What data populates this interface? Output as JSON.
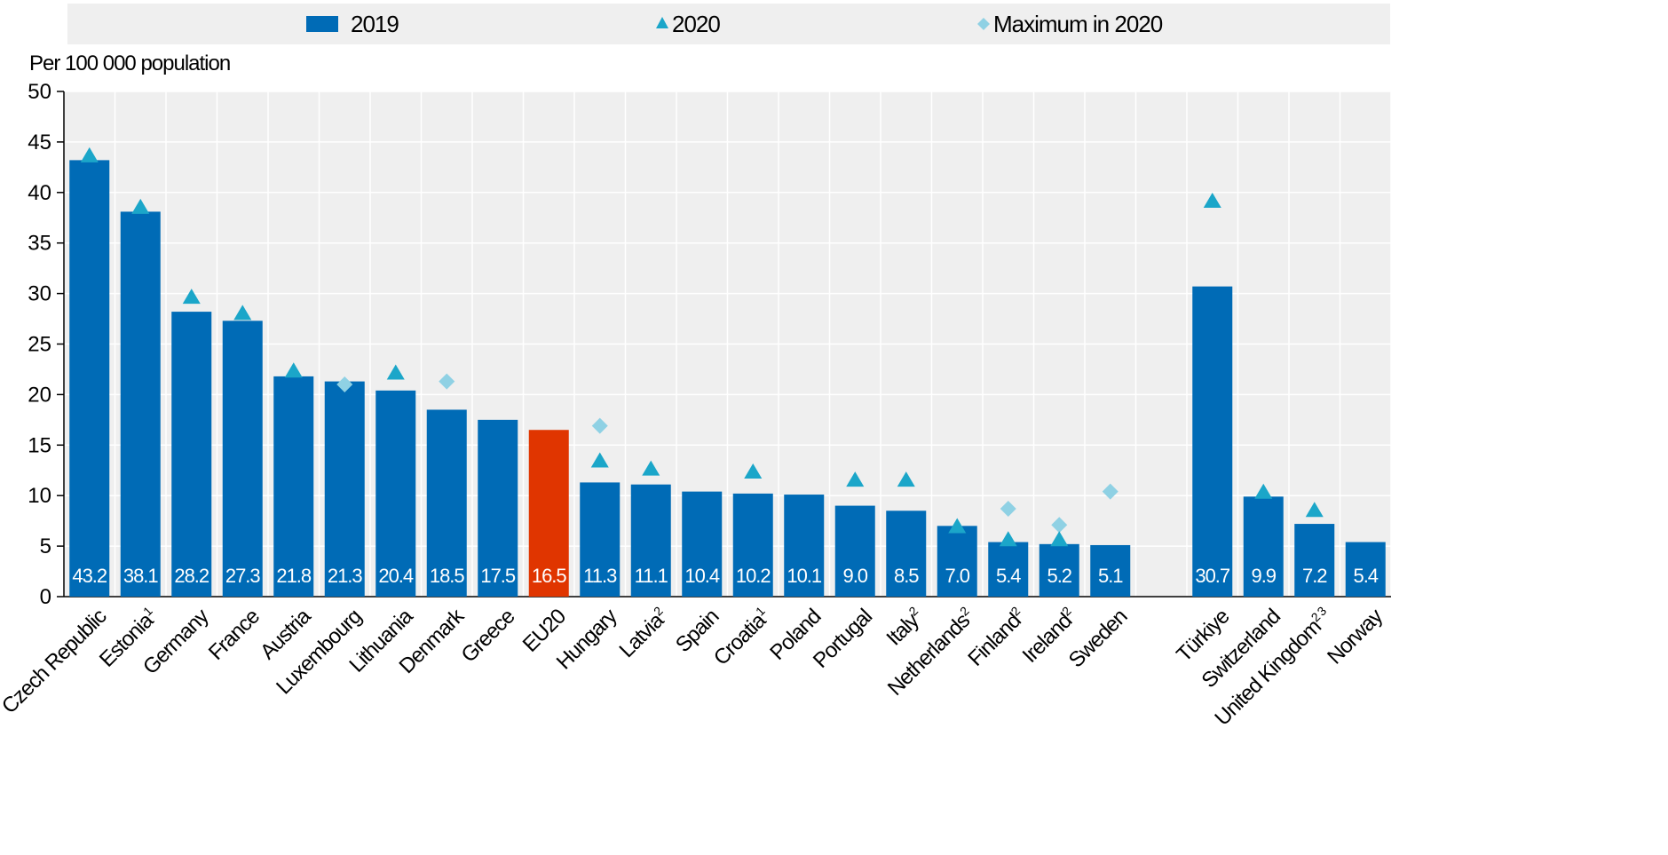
{
  "chart_data": {
    "type": "bar",
    "unit_label": "Per 100 000 population",
    "ylim": [
      0,
      50
    ],
    "yticks": [
      0,
      5,
      10,
      15,
      20,
      25,
      30,
      35,
      40,
      45,
      50
    ],
    "grid": true,
    "legend_position": "top",
    "legend": [
      {
        "key": "bar",
        "label": "2019",
        "color": "#006BB6"
      },
      {
        "key": "triangle",
        "label": "2020",
        "color": "#1BA6C9"
      },
      {
        "key": "diamond",
        "label": "Maximum in 2020",
        "color": "#8FD1E4"
      }
    ],
    "colors": {
      "bar": "#006BB6",
      "highlight": "#E03500",
      "triangle": "#1BA6C9",
      "diamond": "#8FD1E4",
      "plot_bg": "#EFEFEF"
    },
    "categories": [
      {
        "name": "Czech Republic",
        "sup": "",
        "value": 43.2,
        "label": "43.2",
        "tri": 43.6,
        "diamond": null
      },
      {
        "name": "Estonia",
        "sup": "1",
        "value": 38.1,
        "label": "38.1",
        "tri": 38.5,
        "diamond": null
      },
      {
        "name": "Germany",
        "sup": "",
        "value": 28.2,
        "label": "28.2",
        "tri": 29.6,
        "diamond": null
      },
      {
        "name": "France",
        "sup": "",
        "value": 27.3,
        "label": "27.3",
        "tri": 28.0,
        "diamond": null
      },
      {
        "name": "Austria",
        "sup": "",
        "value": 21.8,
        "label": "21.8",
        "tri": 22.3,
        "diamond": null
      },
      {
        "name": "Luxembourg",
        "sup": "",
        "value": 21.3,
        "label": "21.3",
        "tri": null,
        "diamond": 21.0
      },
      {
        "name": "Lithuania",
        "sup": "",
        "value": 20.4,
        "label": "20.4",
        "tri": 22.1,
        "diamond": null
      },
      {
        "name": "Denmark",
        "sup": "",
        "value": 18.5,
        "label": "18.5",
        "tri": null,
        "diamond": 21.3
      },
      {
        "name": "Greece",
        "sup": "",
        "value": 17.5,
        "label": "17.5",
        "tri": null,
        "diamond": null
      },
      {
        "name": "EU20",
        "sup": "",
        "value": 16.5,
        "label": "16.5",
        "tri": null,
        "diamond": null,
        "highlight": true
      },
      {
        "name": "Hungary",
        "sup": "",
        "value": 11.3,
        "label": "11.3",
        "tri": 13.4,
        "diamond": 16.9
      },
      {
        "name": "Latvia",
        "sup": "2",
        "value": 11.1,
        "label": "11.1",
        "tri": 12.6,
        "diamond": null
      },
      {
        "name": "Spain",
        "sup": "",
        "value": 10.4,
        "label": "10.4",
        "tri": null,
        "diamond": null
      },
      {
        "name": "Croatia",
        "sup": "1",
        "value": 10.2,
        "label": "10.2",
        "tri": 12.3,
        "diamond": null
      },
      {
        "name": "Poland",
        "sup": "",
        "value": 10.1,
        "label": "10.1",
        "tri": null,
        "diamond": null
      },
      {
        "name": "Portugal",
        "sup": "",
        "value": 9.0,
        "label": "9.0",
        "tri": 11.5,
        "diamond": null
      },
      {
        "name": "Italy",
        "sup": "2",
        "value": 8.5,
        "label": "8.5",
        "tri": 11.5,
        "diamond": null
      },
      {
        "name": "Netherlands",
        "sup": "2",
        "value": 7.0,
        "label": "7.0",
        "tri": 6.9,
        "diamond": null
      },
      {
        "name": "Finland",
        "sup": "2",
        "value": 5.4,
        "label": "5.4",
        "tri": 5.6,
        "diamond": 8.7
      },
      {
        "name": "Ireland",
        "sup": "2",
        "value": 5.2,
        "label": "5.2",
        "tri": 5.6,
        "diamond": 7.1
      },
      {
        "name": "Sweden",
        "sup": "",
        "value": 5.1,
        "label": "5.1",
        "tri": null,
        "diamond": 10.4
      },
      {
        "gap": true
      },
      {
        "name": "Türkiye",
        "sup": "",
        "value": 30.7,
        "label": "30.7",
        "tri": 39.1,
        "diamond": null
      },
      {
        "name": "Switzerland",
        "sup": "",
        "value": 9.9,
        "label": "9.9",
        "tri": 10.3,
        "diamond": null
      },
      {
        "name": "United Kingdom",
        "sup": "2 3",
        "value": 7.2,
        "label": "7.2",
        "tri": 8.5,
        "diamond": null
      },
      {
        "name": "Norway",
        "sup": "",
        "value": 5.4,
        "label": "5.4",
        "tri": null,
        "diamond": null
      }
    ]
  }
}
